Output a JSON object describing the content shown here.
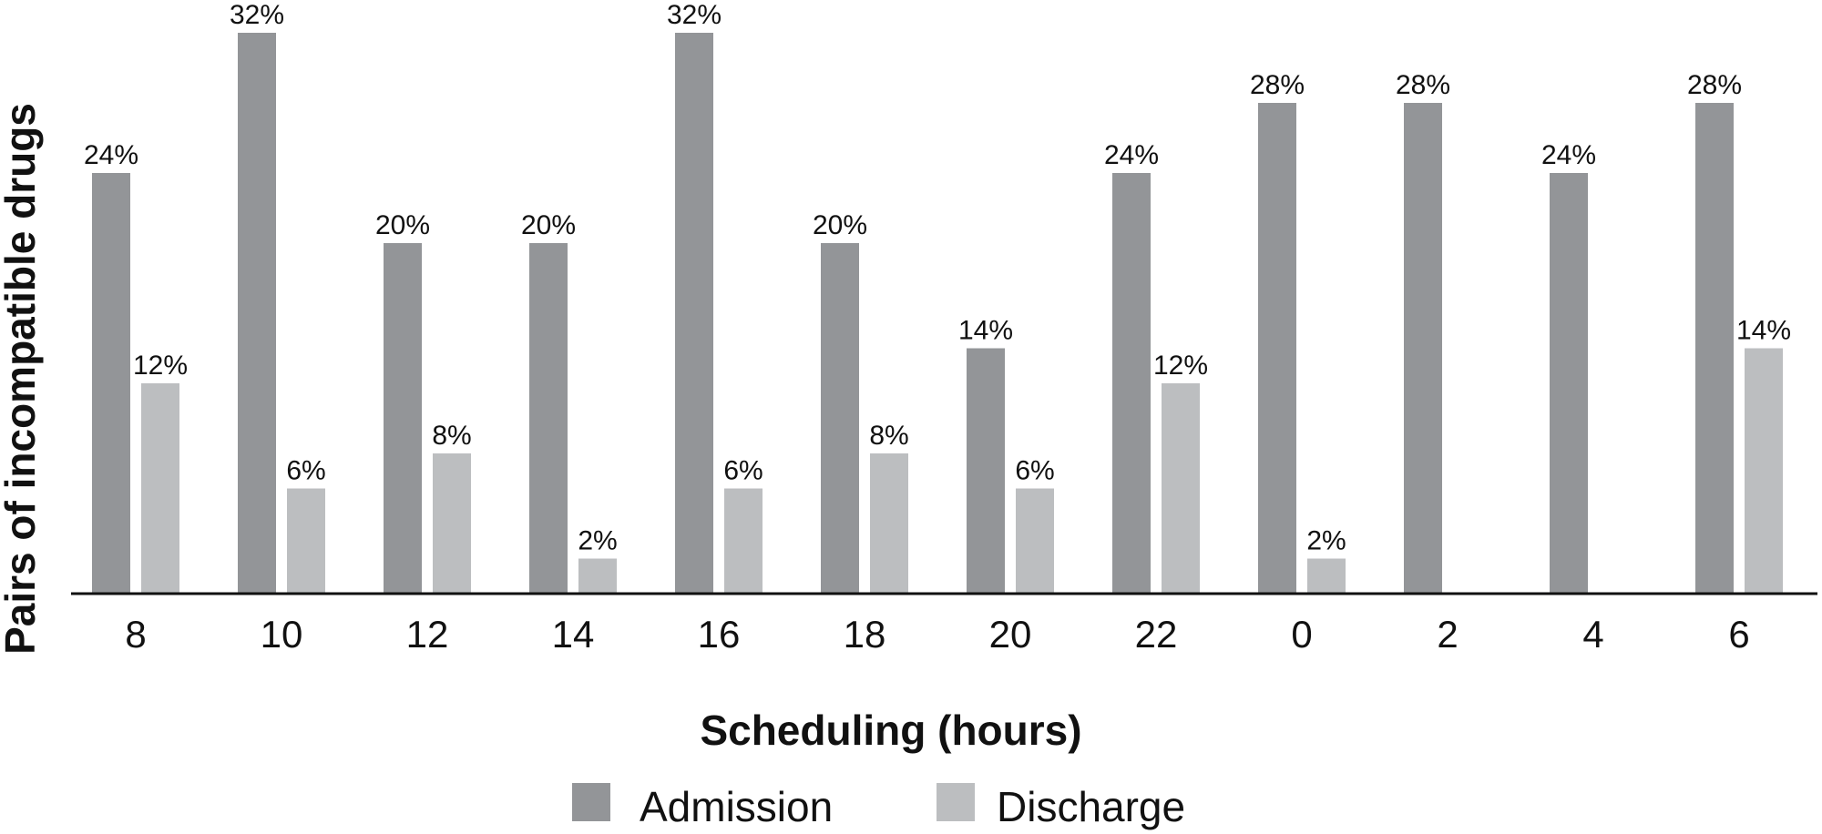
{
  "chart_data": {
    "type": "bar",
    "title": "",
    "xlabel": "Scheduling (hours)",
    "ylabel": "Pairs of incompatible drugs",
    "categories": [
      "8",
      "10",
      "12",
      "14",
      "16",
      "18",
      "20",
      "22",
      "0",
      "2",
      "4",
      "6"
    ],
    "series": [
      {
        "name": "Admission",
        "color": "#939598",
        "values": [
          24,
          32,
          20,
          20,
          32,
          20,
          14,
          24,
          28,
          28,
          24,
          28
        ],
        "labels": [
          "24%",
          "32%",
          "20%",
          "20%",
          "32%",
          "20%",
          "14%",
          "24%",
          "28%",
          "28%",
          "24%",
          "28%"
        ]
      },
      {
        "name": "Discharge",
        "color": "#bcbec0",
        "values": [
          12,
          6,
          8,
          2,
          6,
          8,
          6,
          12,
          2,
          null,
          null,
          14
        ],
        "labels": [
          "12%",
          "6%",
          "8%",
          "2%",
          "6%",
          "8%",
          "6%",
          "12%",
          "2%",
          "",
          "",
          "14%"
        ]
      }
    ],
    "unit": "%",
    "ylim": [
      0,
      33
    ],
    "grid": false,
    "legend_position": "bottom-center"
  }
}
